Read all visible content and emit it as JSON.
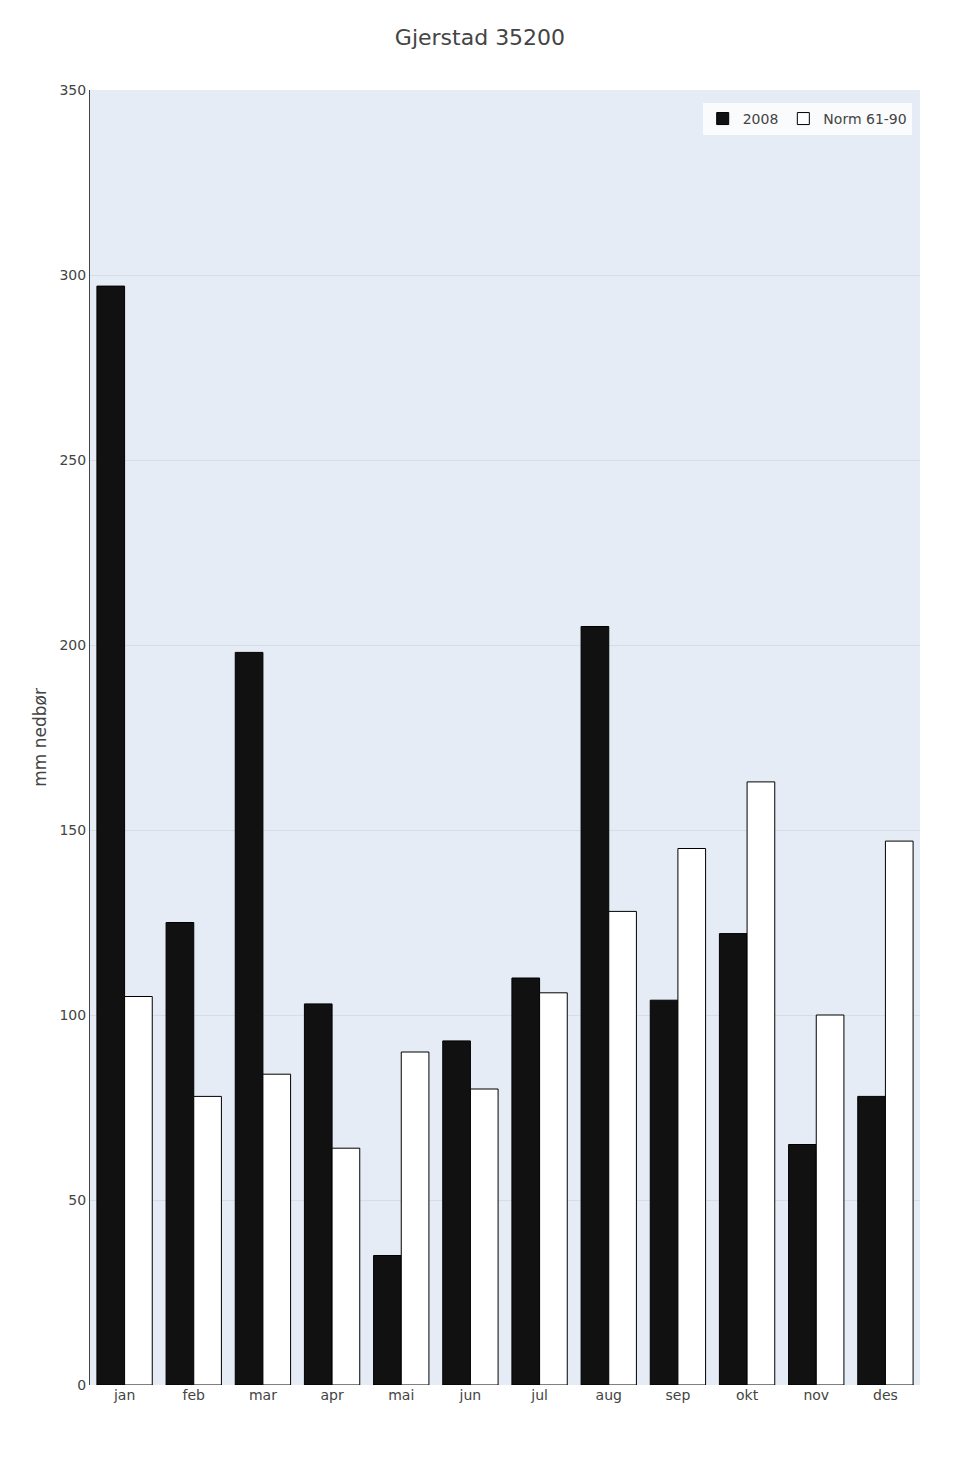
{
  "chart_data": {
    "type": "bar",
    "title": "Gjerstad 35200",
    "ylabel": "mm nedbør",
    "categories": [
      "jan",
      "feb",
      "mar",
      "apr",
      "mai",
      "jun",
      "jul",
      "aug",
      "sep",
      "okt",
      "nov",
      "des"
    ],
    "series": [
      {
        "name": "2008",
        "color": "#111111",
        "values": [
          297,
          125,
          198,
          103,
          35,
          93,
          110,
          205,
          104,
          122,
          65,
          78
        ]
      },
      {
        "name": "Norm 61-90",
        "color": "#ffffff",
        "values": [
          105,
          78,
          84,
          64,
          90,
          80,
          106,
          128,
          145,
          163,
          100,
          147
        ]
      }
    ],
    "ylim": [
      0,
      350
    ],
    "yticks": [
      0,
      50,
      100,
      150,
      200,
      250,
      300,
      350
    ],
    "grid": true,
    "legend": "upper right"
  }
}
